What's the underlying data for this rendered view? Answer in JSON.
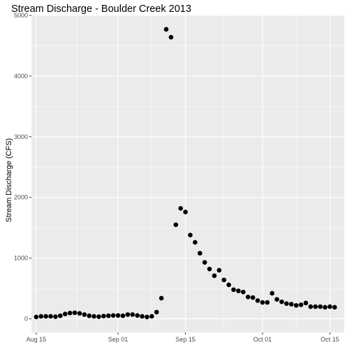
{
  "chart_data": {
    "type": "scatter",
    "title": "Stream Discharge - Boulder Creek 2013",
    "xlabel": "",
    "ylabel": "Stream Discharge (CFS)",
    "xlim": [
      "2013-08-14",
      "2013-10-18"
    ],
    "ylim": [
      -225,
      5000
    ],
    "x_ticks": [
      {
        "date": "2013-08-15",
        "label": "Aug 15"
      },
      {
        "date": "2013-09-01",
        "label": "Sep 01"
      },
      {
        "date": "2013-09-15",
        "label": "Sep 15"
      },
      {
        "date": "2013-10-01",
        "label": "Oct 01"
      },
      {
        "date": "2013-10-15",
        "label": "Oct 15"
      }
    ],
    "y_ticks": [
      0,
      1000,
      2000,
      3000,
      4000,
      5000
    ],
    "grid": true,
    "legend": "none",
    "background_color": "#ebebeb",
    "grid_color": "#ffffff",
    "point_color": "#000000",
    "series": [
      {
        "x": [
          "2013-08-15",
          "2013-08-16",
          "2013-08-17",
          "2013-08-18",
          "2013-08-19",
          "2013-08-20",
          "2013-08-21",
          "2013-08-22",
          "2013-08-23",
          "2013-08-24",
          "2013-08-25",
          "2013-08-26",
          "2013-08-27",
          "2013-08-28",
          "2013-08-29",
          "2013-08-30",
          "2013-08-31",
          "2013-09-01",
          "2013-09-02",
          "2013-09-03",
          "2013-09-04",
          "2013-09-05",
          "2013-09-06",
          "2013-09-07",
          "2013-09-08",
          "2013-09-09",
          "2013-09-10",
          "2013-09-11",
          "2013-09-12",
          "2013-09-13",
          "2013-09-14",
          "2013-09-15",
          "2013-09-16",
          "2013-09-17",
          "2013-09-18",
          "2013-09-19",
          "2013-09-20",
          "2013-09-21",
          "2013-09-22",
          "2013-09-23",
          "2013-09-24",
          "2013-09-25",
          "2013-09-26",
          "2013-09-27",
          "2013-09-28",
          "2013-09-29",
          "2013-09-30",
          "2013-10-01",
          "2013-10-02",
          "2013-10-03",
          "2013-10-04",
          "2013-10-05",
          "2013-10-06",
          "2013-10-07",
          "2013-10-08",
          "2013-10-09",
          "2013-10-10",
          "2013-10-11",
          "2013-10-12",
          "2013-10-13",
          "2013-10-14",
          "2013-10-15",
          "2013-10-16"
        ],
        "y": [
          30,
          40,
          40,
          40,
          35,
          50,
          80,
          95,
          100,
          90,
          70,
          50,
          40,
          35,
          45,
          50,
          55,
          55,
          50,
          70,
          70,
          55,
          40,
          30,
          40,
          110,
          340,
          4770,
          4640,
          1550,
          1820,
          1760,
          1380,
          1260,
          1080,
          930,
          820,
          710,
          800,
          640,
          560,
          480,
          460,
          440,
          360,
          350,
          300,
          270,
          270,
          420,
          320,
          280,
          250,
          240,
          220,
          230,
          260,
          200,
          200,
          200,
          190,
          200,
          190
        ]
      }
    ]
  }
}
